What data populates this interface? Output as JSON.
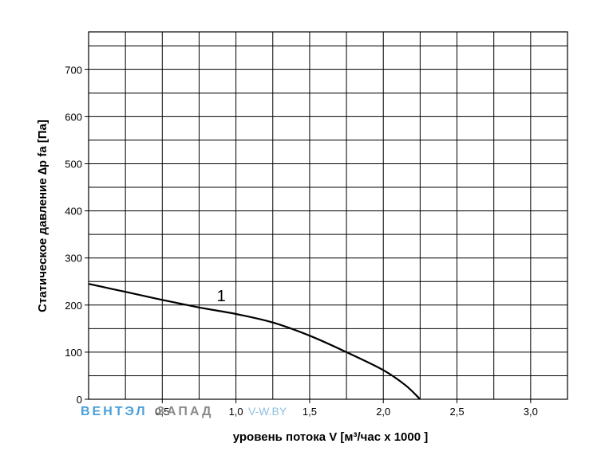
{
  "chart_data": {
    "type": "line",
    "title": "",
    "xlabel": "уровень потока  V [м³/час х 1000 ]",
    "ylabel": "Статическое давление  ∆p fa [Па]",
    "xlim": [
      0,
      3.25
    ],
    "ylim": [
      0,
      780
    ],
    "x_ticks": [
      0.5,
      1.0,
      1.5,
      2.0,
      2.5,
      3.0
    ],
    "x_tick_labels": [
      "0,5",
      "1,0",
      "1,5",
      "2,0",
      "2,5",
      "3,0"
    ],
    "y_ticks": [
      0,
      100,
      200,
      300,
      400,
      500,
      600,
      700
    ],
    "y_tick_labels": [
      "0",
      "100",
      "200",
      "300",
      "400",
      "500",
      "600",
      "700"
    ],
    "grid": true,
    "series": [
      {
        "name": "1",
        "x": [
          0.0,
          0.25,
          0.5,
          0.75,
          1.0,
          1.25,
          1.5,
          1.75,
          2.0,
          2.15,
          2.25
        ],
        "y": [
          245,
          228,
          211,
          195,
          181,
          163,
          135,
          100,
          62,
          30,
          0
        ]
      }
    ],
    "curve_label": "1",
    "curve_label_at": [
      0.87,
      220
    ]
  },
  "watermark": {
    "part1": "ВЕНТЭЛ",
    "part2": "ЗАПАД",
    "site": "V-W.BY",
    "color_blue": "#4a9fd8",
    "color_gray": "#8a8a8a"
  }
}
